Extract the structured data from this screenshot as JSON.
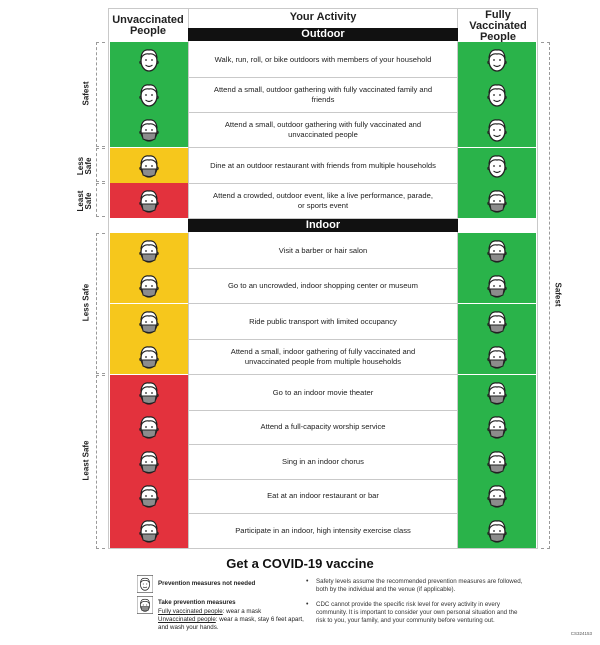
{
  "headers": {
    "unvaccinated": "Unvaccinated People",
    "activity": "Your Activity",
    "vaccinated": "Fully Vaccinated People"
  },
  "sections": {
    "outdoor": "Outdoor",
    "indoor": "Indoor"
  },
  "rows": [
    {
      "activity": "Walk, run, roll, or bike outdoors with members of your household",
      "unvaccinated": "green",
      "unvacc_mask": false,
      "vaccinated": "green",
      "vacc_mask": false
    },
    {
      "activity": "Attend a small, outdoor gathering with fully vaccinated family and friends",
      "unvaccinated": "green",
      "unvacc_mask": false,
      "vaccinated": "green",
      "vacc_mask": false
    },
    {
      "activity": "Attend a small, outdoor gathering with fully vaccinated and unvaccinated people",
      "unvaccinated": "green",
      "unvacc_mask": true,
      "vaccinated": "green",
      "vacc_mask": false
    },
    {
      "activity": "Dine at an outdoor restaurant with friends from multiple households",
      "unvaccinated": "yellow",
      "unvacc_mask": true,
      "vaccinated": "green",
      "vacc_mask": false
    },
    {
      "activity": "Attend a crowded, outdoor event, like a live performance, parade, or sports event",
      "unvaccinated": "red",
      "unvacc_mask": true,
      "vaccinated": "green",
      "vacc_mask": true
    },
    {
      "activity": "Visit a barber or hair salon",
      "unvaccinated": "yellow",
      "unvacc_mask": true,
      "vaccinated": "green",
      "vacc_mask": true
    },
    {
      "activity": "Go to an uncrowded, indoor shopping center or museum",
      "unvaccinated": "yellow",
      "unvacc_mask": true,
      "vaccinated": "green",
      "vacc_mask": true
    },
    {
      "activity": "Ride public transport with limited occupancy",
      "unvaccinated": "yellow",
      "unvacc_mask": true,
      "vaccinated": "green",
      "vacc_mask": true
    },
    {
      "activity": "Attend a small, indoor gathering of fully vaccinated and unvaccinated people from multiple households",
      "unvaccinated": "yellow",
      "unvacc_mask": true,
      "vaccinated": "green",
      "vacc_mask": true
    },
    {
      "activity": "Go to an indoor movie theater",
      "unvaccinated": "red",
      "unvacc_mask": true,
      "vaccinated": "green",
      "vacc_mask": true
    },
    {
      "activity": "Attend a full-capacity worship service",
      "unvaccinated": "red",
      "unvacc_mask": true,
      "vaccinated": "green",
      "vacc_mask": true
    },
    {
      "activity": "Sing in an indoor chorus",
      "unvaccinated": "red",
      "unvacc_mask": true,
      "vaccinated": "green",
      "vacc_mask": true
    },
    {
      "activity": "Eat at an indoor restaurant or bar",
      "unvaccinated": "red",
      "unvacc_mask": true,
      "vaccinated": "green",
      "vacc_mask": true
    },
    {
      "activity": "Participate in an indoor, high intensity exercise class",
      "unvaccinated": "red",
      "unvacc_mask": true,
      "vaccinated": "green",
      "vacc_mask": true
    }
  ],
  "side_labels": {
    "safest": "Safest",
    "less_safe_short": "Less Safe",
    "least_safe_short": "Least Safe",
    "less_safe": "Less Safe",
    "least_safe": "Least Safe",
    "right_safest": "Safest"
  },
  "cta": "Get a COVID-19 vaccine",
  "legend": {
    "no_measures": "Prevention measures not needed",
    "take_measures": "Take prevention measures",
    "vacc_label": "Fully vaccinated people",
    "vacc_text": ": wear a mask",
    "unvacc_label": "Unvaccinated people",
    "unvacc_text": ": wear a mask, stay 6 feet apart, and wash your hands."
  },
  "notes": [
    "Safety levels assume the recommended prevention measures are followed, both by the individual and the venue (if applicable).",
    "CDC cannot provide the specific risk level for every activity in every community. It is important to consider your own personal situation and the risk to you, your family, and your community before venturing out."
  ],
  "doc_code": "CS324153",
  "colors": {
    "green": "#2ab34a",
    "yellow": "#f6c71c",
    "red": "#e3323d"
  }
}
